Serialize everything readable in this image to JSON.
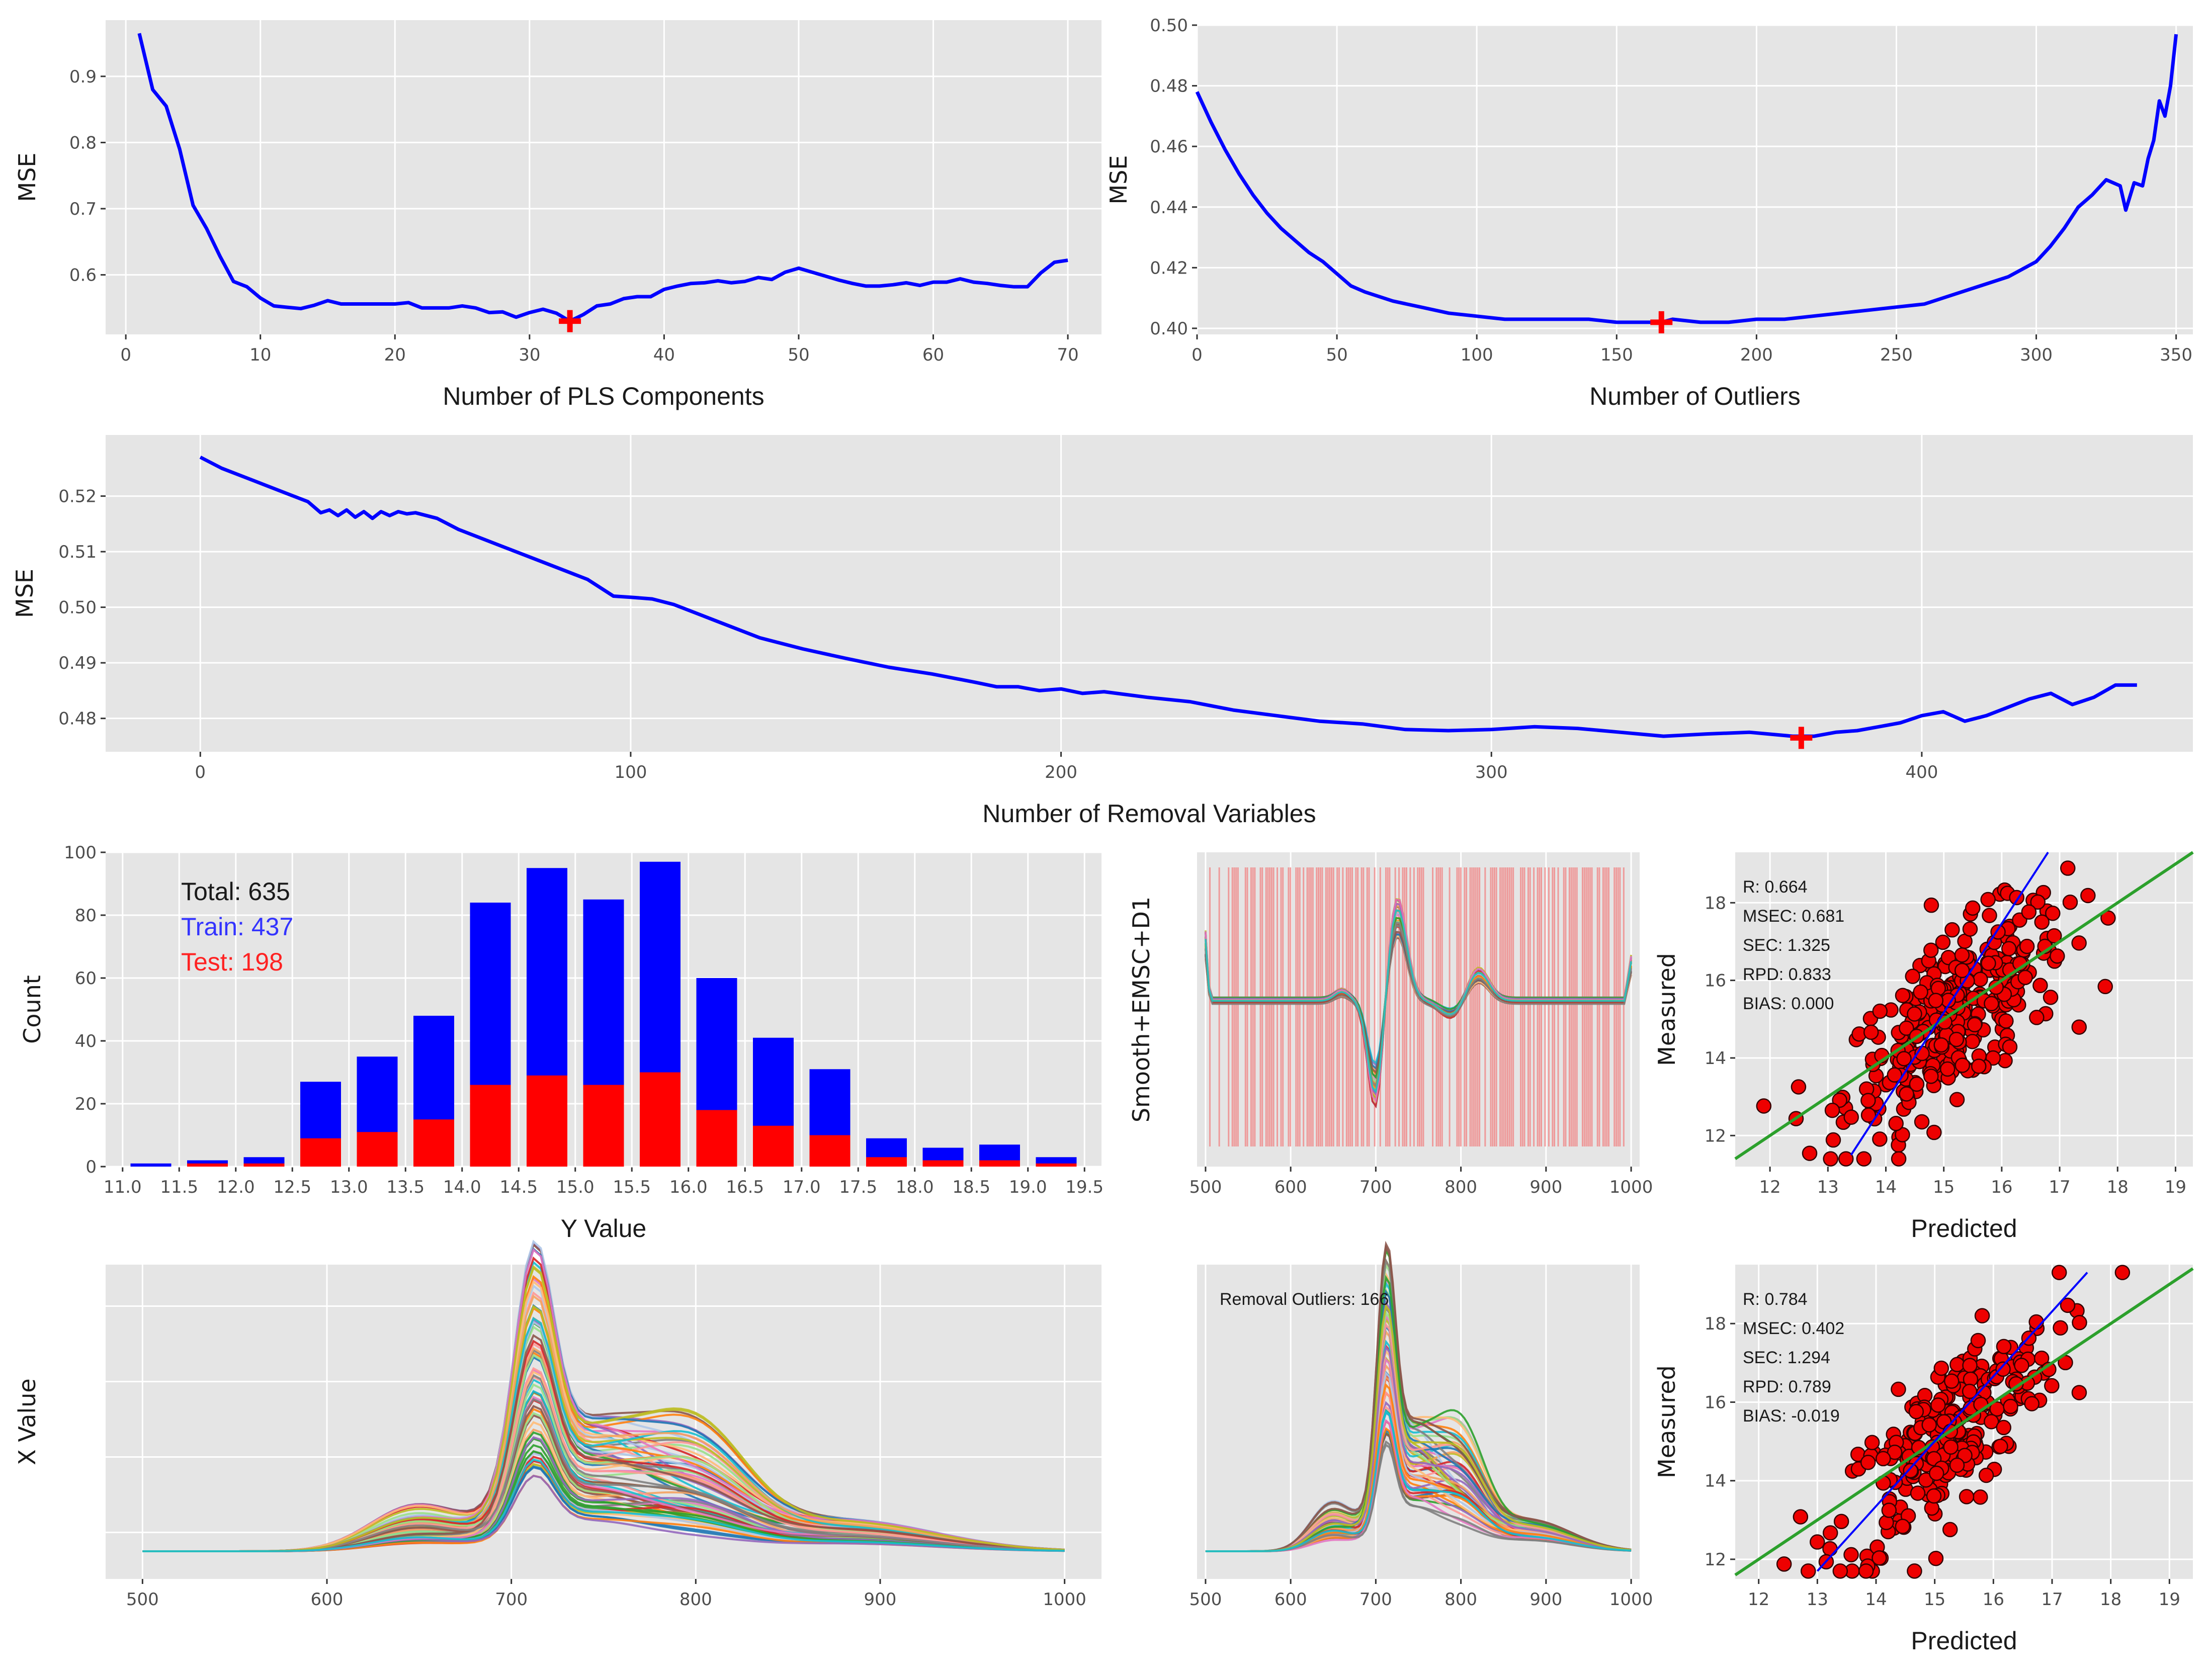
{
  "chart_data": [
    {
      "id": "pls",
      "type": "line",
      "xlabel": "Number of PLS Components",
      "ylabel": "MSE",
      "xlim": [
        -1.5,
        72.5
      ],
      "ylim": [
        0.51,
        0.985
      ],
      "xticks": [
        0,
        10,
        20,
        30,
        40,
        50,
        60,
        70
      ],
      "yticks": [
        0.6,
        0.7,
        0.8,
        0.9
      ],
      "series": [
        {
          "name": "MSE",
          "color": "#0000ff",
          "x": [
            1,
            2,
            3,
            4,
            5,
            6,
            7,
            8,
            9,
            10,
            11,
            12,
            13,
            14,
            15,
            16,
            17,
            18,
            19,
            20,
            21,
            22,
            23,
            24,
            25,
            26,
            27,
            28,
            29,
            30,
            31,
            32,
            33,
            34,
            35,
            36,
            37,
            38,
            39,
            40,
            41,
            42,
            43,
            44,
            45,
            46,
            47,
            48,
            49,
            50,
            51,
            52,
            53,
            54,
            55,
            56,
            57,
            58,
            59,
            60,
            61,
            62,
            63,
            64,
            65,
            66,
            67,
            68,
            69,
            70
          ],
          "y": [
            0.965,
            0.88,
            0.855,
            0.79,
            0.705,
            0.67,
            0.628,
            0.59,
            0.582,
            0.565,
            0.553,
            0.551,
            0.549,
            0.554,
            0.561,
            0.556,
            0.556,
            0.556,
            0.556,
            0.556,
            0.558,
            0.55,
            0.55,
            0.55,
            0.553,
            0.55,
            0.543,
            0.544,
            0.536,
            0.543,
            0.548,
            0.542,
            0.53,
            0.54,
            0.553,
            0.556,
            0.564,
            0.567,
            0.567,
            0.578,
            0.583,
            0.587,
            0.588,
            0.591,
            0.588,
            0.59,
            0.596,
            0.593,
            0.604,
            0.61,
            0.604,
            0.598,
            0.592,
            0.587,
            0.583,
            0.583,
            0.585,
            0.588,
            0.584,
            0.589,
            0.589,
            0.594,
            0.589,
            0.587,
            0.584,
            0.582,
            0.582,
            0.603,
            0.619,
            0.622
          ]
        }
      ],
      "marker": {
        "x": 33,
        "y": 0.53,
        "color": "#ff0000",
        "symbol": "+"
      }
    },
    {
      "id": "outliers",
      "type": "line",
      "xlabel": "Number of Outliers",
      "ylabel": "MSE",
      "xlim": [
        0,
        356
      ],
      "ylim": [
        0.398,
        0.5
      ],
      "xticks": [
        0,
        50,
        100,
        150,
        200,
        250,
        300,
        350
      ],
      "yticks": [
        0.4,
        0.42,
        0.44,
        0.46,
        0.48,
        0.5
      ],
      "tick_labels_y": [
        "0.40",
        "0.42",
        "0.44",
        "0.46",
        "0.48",
        "0.50"
      ],
      "series": [
        {
          "name": "MSE",
          "color": "#0000ff",
          "x": [
            0,
            5,
            10,
            15,
            20,
            25,
            30,
            35,
            40,
            45,
            50,
            55,
            60,
            70,
            80,
            90,
            100,
            110,
            120,
            130,
            140,
            150,
            160,
            166,
            170,
            180,
            190,
            200,
            210,
            220,
            230,
            240,
            250,
            260,
            270,
            280,
            290,
            300,
            305,
            310,
            315,
            320,
            325,
            330,
            332,
            335,
            338,
            340,
            342,
            344,
            346,
            348,
            350
          ],
          "y": [
            0.478,
            0.468,
            0.459,
            0.451,
            0.444,
            0.438,
            0.433,
            0.429,
            0.425,
            0.422,
            0.418,
            0.414,
            0.412,
            0.409,
            0.407,
            0.405,
            0.404,
            0.403,
            0.403,
            0.403,
            0.403,
            0.402,
            0.402,
            0.402,
            0.403,
            0.402,
            0.402,
            0.403,
            0.403,
            0.404,
            0.405,
            0.406,
            0.407,
            0.408,
            0.411,
            0.414,
            0.417,
            0.422,
            0.427,
            0.433,
            0.44,
            0.444,
            0.449,
            0.447,
            0.439,
            0.448,
            0.447,
            0.456,
            0.462,
            0.475,
            0.47,
            0.48,
            0.497
          ]
        }
      ],
      "marker": {
        "x": 166,
        "y": 0.402,
        "color": "#ff0000",
        "symbol": "+"
      }
    },
    {
      "id": "removal",
      "type": "line",
      "xlabel": "Number of Removal Variables",
      "ylabel": "MSE",
      "xlim": [
        -22,
        463
      ],
      "ylim": [
        0.474,
        0.531
      ],
      "xticks": [
        0,
        100,
        200,
        300,
        400
      ],
      "yticks": [
        0.48,
        0.49,
        0.5,
        0.51,
        0.52
      ],
      "tick_labels_y": [
        "0.48",
        "0.49",
        "0.50",
        "0.51",
        "0.52"
      ],
      "series": [
        {
          "name": "MSE",
          "color": "#0000ff",
          "x": [
            0,
            5,
            10,
            15,
            20,
            25,
            28,
            30,
            32,
            34,
            36,
            38,
            40,
            42,
            44,
            46,
            48,
            50,
            55,
            60,
            70,
            80,
            90,
            96,
            100,
            105,
            110,
            120,
            130,
            140,
            150,
            160,
            170,
            180,
            185,
            190,
            195,
            200,
            205,
            210,
            220,
            230,
            240,
            250,
            260,
            270,
            280,
            290,
            300,
            310,
            320,
            330,
            340,
            350,
            360,
            370,
            375,
            380,
            385,
            390,
            395,
            400,
            405,
            410,
            415,
            420,
            425,
            430,
            435,
            440,
            445,
            450
          ],
          "y": [
            0.527,
            0.525,
            0.5235,
            0.522,
            0.5205,
            0.519,
            0.517,
            0.5175,
            0.5165,
            0.5175,
            0.5162,
            0.5172,
            0.516,
            0.5172,
            0.5165,
            0.5172,
            0.5168,
            0.517,
            0.516,
            0.514,
            0.511,
            0.508,
            0.505,
            0.502,
            0.5018,
            0.5015,
            0.5005,
            0.4975,
            0.4945,
            0.4925,
            0.4908,
            0.4892,
            0.488,
            0.4865,
            0.4857,
            0.4857,
            0.485,
            0.4853,
            0.4845,
            0.4848,
            0.4838,
            0.483,
            0.4815,
            0.4805,
            0.4795,
            0.479,
            0.478,
            0.4778,
            0.478,
            0.4785,
            0.4782,
            0.4775,
            0.4768,
            0.4772,
            0.4775,
            0.4768,
            0.4768,
            0.4775,
            0.4778,
            0.4785,
            0.4792,
            0.4805,
            0.4812,
            0.4795,
            0.4805,
            0.482,
            0.4835,
            0.4845,
            0.4825,
            0.4838,
            0.486,
            0.486
          ]
        }
      ],
      "marker": {
        "x": 372,
        "y": 0.4765,
        "color": "#ff0000",
        "symbol": "+"
      }
    },
    {
      "id": "histogram",
      "type": "bar",
      "xlabel": "Y Value",
      "ylabel": "Count",
      "xlim": [
        10.85,
        19.65
      ],
      "ylim": [
        0,
        100
      ],
      "xticks": [
        11.0,
        11.5,
        12.0,
        12.5,
        13.0,
        13.5,
        14.0,
        14.5,
        15.0,
        15.5,
        16.0,
        16.5,
        17.0,
        17.5,
        18.0,
        18.5,
        19.0,
        19.5
      ],
      "tick_labels_x": [
        "11.0",
        "11.5",
        "12.0",
        "12.5",
        "13.0",
        "13.5",
        "14.0",
        "14.5",
        "15.0",
        "15.5",
        "16.0",
        "16.5",
        "17.0",
        "17.5",
        "18.0",
        "18.5",
        "19.0",
        "19.5"
      ],
      "yticks": [
        0,
        20,
        40,
        60,
        80,
        100
      ],
      "categories": [
        11.25,
        11.75,
        12.25,
        12.75,
        13.25,
        13.75,
        14.25,
        14.75,
        15.25,
        15.75,
        16.25,
        16.75,
        17.25,
        17.75,
        18.25,
        18.75,
        19.25
      ],
      "series": [
        {
          "name": "Total",
          "color": "#0000ff",
          "values": [
            1,
            2,
            3,
            27,
            35,
            48,
            84,
            95,
            85,
            97,
            60,
            41,
            31,
            9,
            6,
            7,
            3
          ]
        },
        {
          "name": "Test",
          "color": "#ff0000",
          "values": [
            0,
            1,
            1,
            9,
            11,
            15,
            26,
            29,
            26,
            30,
            18,
            13,
            10,
            3,
            2,
            2,
            1
          ]
        }
      ],
      "legend": [
        {
          "text": "Total: 635",
          "color": "#1a1a1a"
        },
        {
          "text": "Train: 437",
          "color": "#3333ff"
        },
        {
          "text": "Test: 198",
          "color": "#ff2222"
        }
      ]
    },
    {
      "id": "preproc",
      "type": "line",
      "ylabel": "Smooth+EMSC+D1",
      "xlim": [
        490,
        1010
      ],
      "xticks": [
        500,
        600,
        700,
        800,
        900,
        1000
      ],
      "note": "spectral derivative curves with selected wavelength bands highlighted"
    },
    {
      "id": "scatter_top",
      "type": "scatter",
      "xlabel": "Predicted",
      "ylabel": "Measured",
      "xlim": [
        11.4,
        19.3
      ],
      "ylim": [
        11.2,
        19.3
      ],
      "xticks": [
        12,
        13,
        14,
        15,
        16,
        17,
        18,
        19
      ],
      "yticks": [
        12,
        14,
        16,
        18
      ],
      "stats": [
        "R: 0.664",
        "MSEC: 0.681",
        "SEC: 1.325",
        "RPD: 0.833",
        "BIAS: 0.000"
      ],
      "fit_line": {
        "color": "#0000ff",
        "x": [
          13.4,
          16.8
        ],
        "y": [
          11.5,
          19.3
        ]
      },
      "identity_line": {
        "color": "#2ca02c",
        "x": [
          11.4,
          19.3
        ],
        "y": [
          11.4,
          19.3
        ]
      }
    },
    {
      "id": "raw_spectra",
      "type": "line",
      "ylabel": "X Value",
      "xlim": [
        480,
        1020
      ],
      "xticks": [
        500,
        600,
        700,
        800,
        900,
        1000
      ]
    },
    {
      "id": "outlier_spectra",
      "type": "line",
      "xlim": [
        490,
        1010
      ],
      "xticks": [
        500,
        600,
        700,
        800,
        900,
        1000
      ],
      "annotation": "Removal Outliers: 166"
    },
    {
      "id": "scatter_bottom",
      "type": "scatter",
      "xlabel": "Predicted",
      "ylabel": "Measured",
      "xlim": [
        11.6,
        19.4
      ],
      "ylim": [
        11.5,
        19.5
      ],
      "xticks": [
        12,
        13,
        14,
        15,
        16,
        17,
        18,
        19
      ],
      "yticks": [
        12,
        14,
        16,
        18
      ],
      "stats": [
        "R: 0.784",
        "MSEC: 0.402",
        "SEC: 1.294",
        "RPD: 0.789",
        "BIAS: -0.019"
      ],
      "fit_line": {
        "color": "#0000ff",
        "x": [
          13.0,
          17.6
        ],
        "y": [
          11.7,
          19.3
        ]
      },
      "identity_line": {
        "color": "#2ca02c",
        "x": [
          11.6,
          19.4
        ],
        "y": [
          11.6,
          19.4
        ]
      }
    }
  ]
}
